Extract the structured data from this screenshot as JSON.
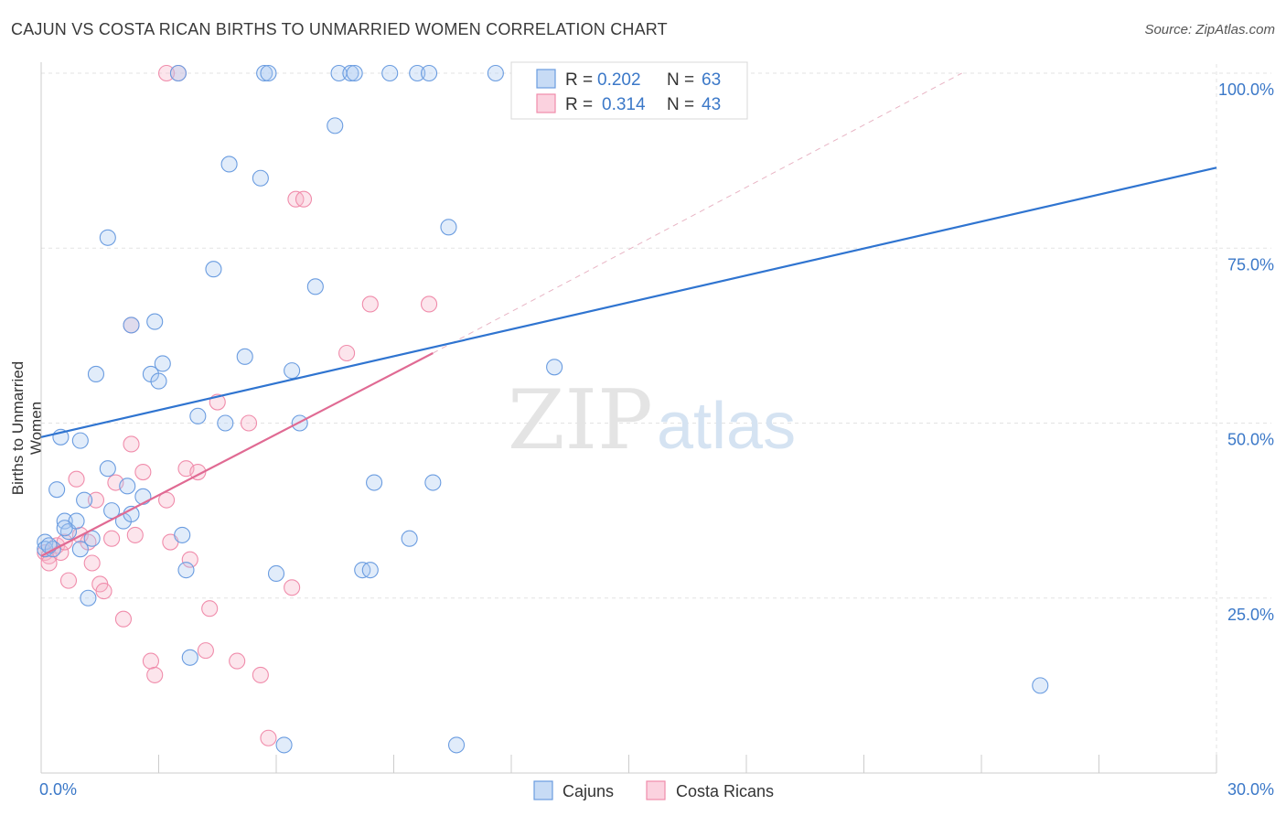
{
  "chart_data": {
    "type": "scatter",
    "title": "CAJUN VS COSTA RICAN BIRTHS TO UNMARRIED WOMEN CORRELATION CHART",
    "source": "Source: ZipAtlas.com",
    "xlabel": "",
    "ylabel": "Births to Unmarried Women",
    "xlim": [
      0,
      30
    ],
    "ylim": [
      0,
      100
    ],
    "x_tick_labels": [
      "0.0%",
      "30.0%"
    ],
    "y_tick_labels": [
      "25.0%",
      "50.0%",
      "75.0%",
      "100.0%"
    ],
    "y_ticks": [
      25,
      50,
      75,
      100
    ],
    "grid": true,
    "watermark": "ZIPatlas",
    "legend": {
      "position": "top-center",
      "entries": [
        {
          "r_label": "R =",
          "r": "0.202",
          "n_label": "N =",
          "n": "63"
        },
        {
          "r_label": "R =",
          "r": "0.314",
          "n_label": "N =",
          "n": "43"
        }
      ]
    },
    "bottom_legend": [
      "Cajuns",
      "Costa Ricans"
    ],
    "colors": {
      "cajuns": "#6a9ce0",
      "costa_ricans": "#f08cab",
      "cajuns_line": "#2f74d0",
      "costa_line": "#e06a93",
      "value_text": "#3b78c8"
    },
    "series": [
      {
        "name": "Cajuns",
        "trend": {
          "x": [
            0,
            30
          ],
          "y": [
            48,
            86.5
          ]
        },
        "points": [
          [
            0.1,
            33
          ],
          [
            0.1,
            32
          ],
          [
            0.3,
            32
          ],
          [
            0.4,
            40.5
          ],
          [
            0.5,
            48
          ],
          [
            0.6,
            36
          ],
          [
            0.7,
            34.5
          ],
          [
            0.9,
            36
          ],
          [
            1.0,
            47.5
          ],
          [
            1.1,
            39
          ],
          [
            1.2,
            25
          ],
          [
            1.3,
            33.5
          ],
          [
            1.4,
            57
          ],
          [
            1.7,
            43.5
          ],
          [
            1.8,
            37.5
          ],
          [
            2.1,
            36
          ],
          [
            2.2,
            41
          ],
          [
            2.3,
            37
          ],
          [
            2.6,
            39.5
          ],
          [
            2.8,
            57
          ],
          [
            3.0,
            56
          ],
          [
            3.1,
            58.5
          ],
          [
            3.7,
            29
          ],
          [
            3.8,
            16.5
          ],
          [
            4.0,
            51
          ],
          [
            4.4,
            72
          ],
          [
            4.7,
            50
          ],
          [
            5.2,
            59.5
          ],
          [
            5.6,
            85
          ],
          [
            6.4,
            57.5
          ],
          [
            6.6,
            50
          ],
          [
            7.0,
            69.5
          ],
          [
            7.5,
            92.5
          ],
          [
            8.2,
            29
          ],
          [
            8.4,
            29
          ],
          [
            8.5,
            41.5
          ],
          [
            9.4,
            33.5
          ],
          [
            10.0,
            41.5
          ],
          [
            10.4,
            78
          ],
          [
            13.1,
            58
          ],
          [
            1.7,
            76.5
          ],
          [
            2.3,
            64
          ],
          [
            2.9,
            64.5
          ],
          [
            4.8,
            87
          ],
          [
            6.0,
            28.5
          ],
          [
            6.2,
            4
          ],
          [
            10.6,
            4
          ],
          [
            25.5,
            12.5
          ],
          [
            3.6,
            34
          ],
          [
            1.0,
            32
          ],
          [
            0.2,
            32.5
          ],
          [
            0.6,
            35
          ],
          [
            3.5,
            100
          ],
          [
            5.7,
            100
          ],
          [
            5.8,
            100
          ],
          [
            7.6,
            100
          ],
          [
            7.9,
            100
          ],
          [
            8.0,
            100
          ],
          [
            8.9,
            100
          ],
          [
            9.6,
            100
          ],
          [
            9.9,
            100
          ],
          [
            11.6,
            100
          ],
          [
            12.6,
            100
          ]
        ]
      },
      {
        "name": "Costa Ricans",
        "trend": {
          "x": [
            0,
            10
          ],
          "y": [
            31,
            60
          ]
        },
        "dashed_extension": {
          "x": [
            10,
            23.5
          ],
          "y": [
            60,
            100
          ]
        },
        "points": [
          [
            0.1,
            31.5
          ],
          [
            0.2,
            31
          ],
          [
            0.4,
            32.5
          ],
          [
            0.5,
            31.5
          ],
          [
            0.6,
            33
          ],
          [
            0.7,
            27.5
          ],
          [
            0.9,
            42
          ],
          [
            1.0,
            34
          ],
          [
            1.2,
            33
          ],
          [
            1.3,
            30
          ],
          [
            1.4,
            39
          ],
          [
            1.5,
            27
          ],
          [
            1.6,
            26
          ],
          [
            1.8,
            33.5
          ],
          [
            1.9,
            41.5
          ],
          [
            2.1,
            22
          ],
          [
            2.3,
            47
          ],
          [
            2.4,
            34
          ],
          [
            2.6,
            43
          ],
          [
            2.8,
            16
          ],
          [
            2.9,
            14
          ],
          [
            3.2,
            39
          ],
          [
            3.3,
            33
          ],
          [
            3.7,
            43.5
          ],
          [
            3.8,
            30.5
          ],
          [
            4.0,
            43
          ],
          [
            4.2,
            17.5
          ],
          [
            4.3,
            23.5
          ],
          [
            4.5,
            53
          ],
          [
            5.0,
            16
          ],
          [
            5.3,
            50
          ],
          [
            5.6,
            14
          ],
          [
            5.8,
            5
          ],
          [
            6.4,
            26.5
          ],
          [
            6.5,
            82
          ],
          [
            6.7,
            82
          ],
          [
            7.8,
            60
          ],
          [
            8.4,
            67
          ],
          [
            9.9,
            67
          ],
          [
            3.2,
            100
          ],
          [
            3.5,
            100
          ],
          [
            2.3,
            64
          ],
          [
            0.2,
            30
          ]
        ]
      }
    ]
  }
}
